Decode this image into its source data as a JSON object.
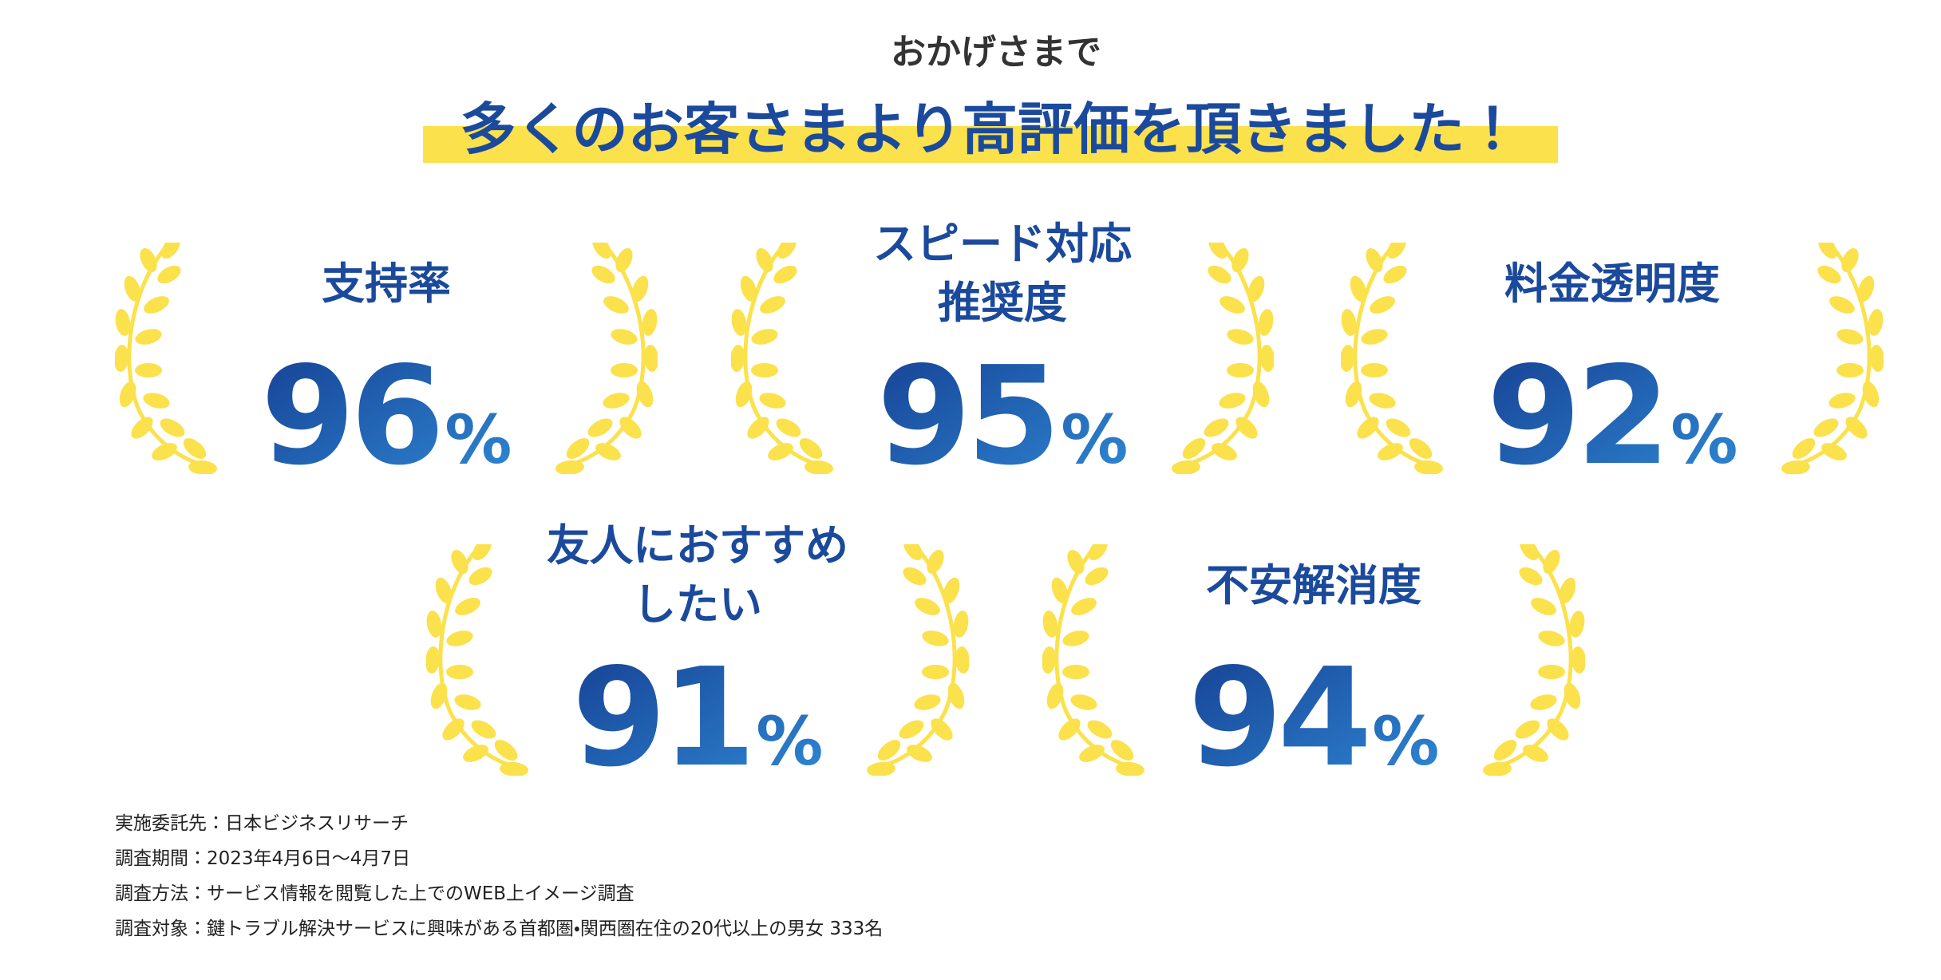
{
  "header": {
    "lead": "おかげさまで",
    "title": "多くのお客さまより高評価を頂きました！"
  },
  "awards": [
    {
      "label": [
        "支持率"
      ],
      "value": 96,
      "unit": "%"
    },
    {
      "label": [
        "スピード対応",
        "推奨度"
      ],
      "value": 95,
      "unit": "%"
    },
    {
      "label": [
        "料金透明度"
      ],
      "value": 92,
      "unit": "%"
    },
    {
      "label": [
        "友人におすすめ",
        "したい"
      ],
      "value": 91,
      "unit": "%"
    },
    {
      "label": [
        "不安解消度"
      ],
      "value": 94,
      "unit": "%"
    }
  ],
  "notes": [
    "実施委託先：日本ビジネスリサーチ",
    "調査期間：2023年4月6日〜4月7日",
    "調査方法：サービス情報を閲覧した上でのWEB上イメージ調査",
    "調査対象：鍵トラブル解決サービスに興味がある首都圏・関西圏在住の20代以上の男女 333名"
  ]
}
